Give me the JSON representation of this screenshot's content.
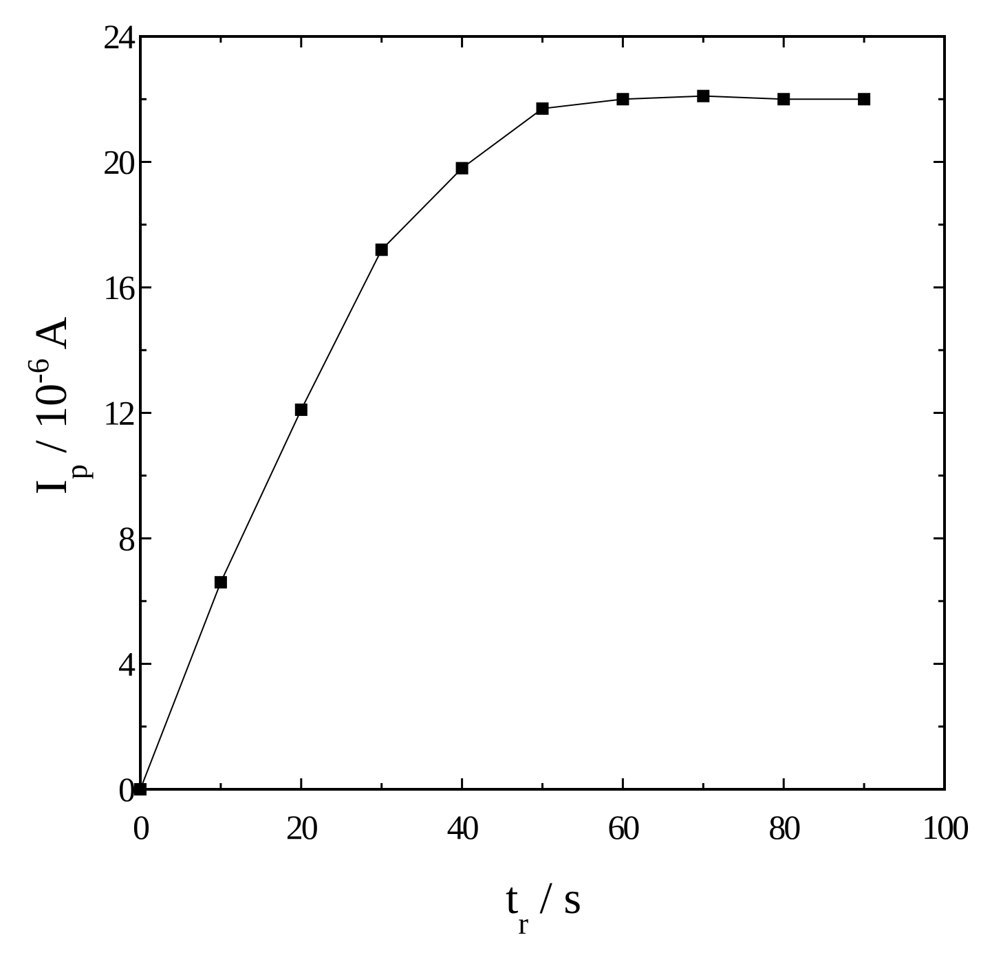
{
  "chart_data": {
    "type": "line",
    "x": [
      0,
      10,
      20,
      30,
      40,
      50,
      60,
      70,
      80,
      90
    ],
    "series": [
      {
        "color": "#000000",
        "values": [
          0,
          6.6,
          12.1,
          17.2,
          19.8,
          21.7,
          22.0,
          22.1,
          22.0,
          22.0
        ]
      }
    ],
    "xlim": [
      0,
      100
    ],
    "xticks": [
      0,
      20,
      40,
      60,
      80,
      100
    ],
    "xminorticks": [
      10,
      30,
      50,
      70,
      90
    ],
    "ylim": [
      0,
      24
    ],
    "yticks": [
      0,
      4,
      8,
      12,
      16,
      20,
      24
    ],
    "yminorticks": [
      2,
      6,
      10,
      14,
      18,
      22
    ],
    "xlabel": [
      "t",
      "r",
      " / s"
    ],
    "ylabel": [
      "I",
      "p",
      " / 10",
      "-6",
      " A"
    ]
  }
}
